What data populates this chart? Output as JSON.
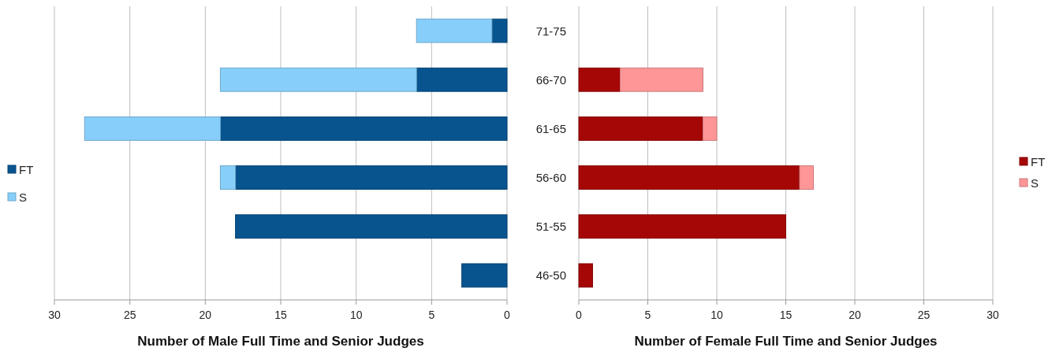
{
  "chart_data": [
    {
      "type": "bar",
      "orientation": "horizontal",
      "stacked": true,
      "categories": [
        null,
        null,
        null,
        null,
        null,
        null
      ],
      "series": [
        {
          "name": "FT",
          "color": "#07548f",
          "values": [
            1,
            6,
            19,
            18,
            18,
            3
          ]
        },
        {
          "name": "S",
          "color": "#87cffa",
          "values": [
            5,
            13,
            9,
            1,
            0,
            0
          ]
        }
      ],
      "xlim": [
        30,
        0
      ],
      "xticks": [
        30,
        25,
        20,
        15,
        10,
        5,
        0
      ],
      "xlabel": "Number of Male Full Time and Senior Judges",
      "grid": "x",
      "legend": "left",
      "tick_labels": "x"
    },
    {
      "type": "bar",
      "orientation": "horizontal",
      "stacked": true,
      "categories": [
        "71-75",
        "66-70",
        "61-65",
        "56-60",
        "51-55",
        "46-50"
      ],
      "series": [
        {
          "name": "FT",
          "color": "#a50707",
          "values": [
            0,
            3,
            9,
            16,
            15,
            1
          ]
        },
        {
          "name": "S",
          "color": "#fe9697",
          "values": [
            0,
            6,
            1,
            1,
            0,
            0
          ]
        }
      ],
      "xlim": [
        0,
        30
      ],
      "xticks": [
        0,
        5,
        10,
        15,
        20,
        25,
        30
      ],
      "xlabel": "Number of Female Full Time and Senior Judges",
      "grid": "x",
      "legend": "right"
    }
  ]
}
